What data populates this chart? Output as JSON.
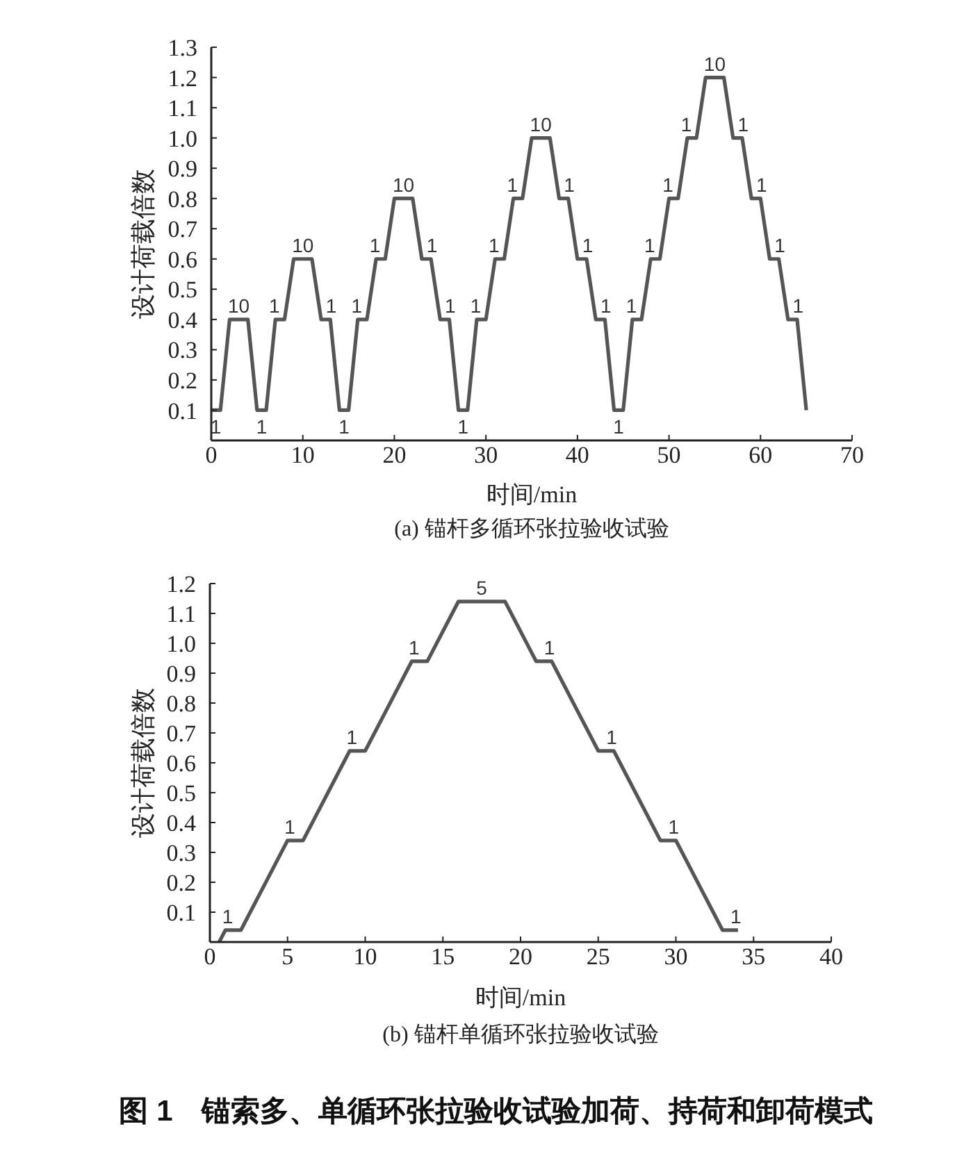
{
  "chart_data": [
    {
      "type": "line",
      "title": "(a) 锚杆多循环张拉验收试验",
      "xlabel": "时间/min",
      "ylabel": "设计荷载倍数",
      "color": "#555555",
      "marker": "none",
      "line_style": "solid",
      "x": [
        0,
        1,
        2,
        4,
        5,
        6,
        7,
        8,
        9,
        11,
        12,
        13,
        14,
        15,
        16,
        17,
        18,
        19,
        20,
        22,
        23,
        24,
        25,
        26,
        27,
        28,
        29,
        30,
        31,
        32,
        33,
        34,
        35,
        37,
        38,
        39,
        40,
        41,
        42,
        43,
        44,
        45,
        46,
        47,
        48,
        49,
        50,
        51,
        52,
        53,
        54,
        56,
        57,
        58,
        59,
        60,
        61,
        62,
        63,
        64,
        65
      ],
      "values": [
        0.1,
        0.1,
        0.4,
        0.4,
        0.1,
        0.1,
        0.4,
        0.4,
        0.6,
        0.6,
        0.4,
        0.4,
        0.1,
        0.1,
        0.4,
        0.4,
        0.6,
        0.6,
        0.8,
        0.8,
        0.6,
        0.6,
        0.4,
        0.4,
        0.1,
        0.1,
        0.4,
        0.4,
        0.6,
        0.6,
        0.8,
        0.8,
        1.0,
        1.0,
        0.8,
        0.8,
        0.6,
        0.6,
        0.4,
        0.4,
        0.1,
        0.1,
        0.4,
        0.4,
        0.6,
        0.6,
        0.8,
        0.8,
        1.0,
        1.0,
        1.2,
        1.2,
        1.0,
        1.0,
        0.8,
        0.8,
        0.6,
        0.6,
        0.4,
        0.4,
        0.1
      ],
      "xlim": [
        0,
        70
      ],
      "xticks": [
        0,
        10,
        20,
        30,
        40,
        50,
        60,
        70
      ],
      "ylim": [
        0,
        1.3
      ],
      "yticks": [
        0.1,
        0.2,
        0.3,
        0.4,
        0.5,
        0.6,
        0.7,
        0.8,
        0.9,
        {
          "value": 1,
          "label": "1.0"
        },
        1.1,
        1.2,
        1.3
      ],
      "annotations": [
        {
          "text": "1",
          "x": 0.5,
          "y": 0.1
        },
        {
          "text": "10",
          "x": 3,
          "y": 0.4
        },
        {
          "text": "1",
          "x": 5.5,
          "y": 0.1
        },
        {
          "text": "1",
          "x": 7.5,
          "y": 0.4
        },
        {
          "text": "10",
          "x": 10,
          "y": 0.6
        },
        {
          "text": "1",
          "x": 12.5,
          "y": 0.4
        },
        {
          "text": "1",
          "x": 14.5,
          "y": 0.1
        },
        {
          "text": "1",
          "x": 16.5,
          "y": 0.4
        },
        {
          "text": "1",
          "x": 18.5,
          "y": 0.6
        },
        {
          "text": "10",
          "x": 21,
          "y": 0.8
        },
        {
          "text": "1",
          "x": 23.5,
          "y": 0.6
        },
        {
          "text": "1",
          "x": 25.5,
          "y": 0.4
        },
        {
          "text": "1",
          "x": 27.5,
          "y": 0.1
        },
        {
          "text": "1",
          "x": 29.5,
          "y": 0.4
        },
        {
          "text": "1",
          "x": 31.5,
          "y": 0.6
        },
        {
          "text": "1",
          "x": 33.5,
          "y": 0.8
        },
        {
          "text": "10",
          "x": 36,
          "y": 1.0
        },
        {
          "text": "1",
          "x": 38.5,
          "y": 0.8
        },
        {
          "text": "1",
          "x": 40.5,
          "y": 0.6
        },
        {
          "text": "1",
          "x": 42.5,
          "y": 0.4
        },
        {
          "text": "1",
          "x": 44.5,
          "y": 0.1
        },
        {
          "text": "1",
          "x": 46.5,
          "y": 0.4
        },
        {
          "text": "1",
          "x": 48.5,
          "y": 0.6
        },
        {
          "text": "1",
          "x": 50.5,
          "y": 0.8
        },
        {
          "text": "1",
          "x": 52.5,
          "y": 1.0
        },
        {
          "text": "10",
          "x": 55,
          "y": 1.2
        },
        {
          "text": "1",
          "x": 57.5,
          "y": 1.0
        },
        {
          "text": "1",
          "x": 59.5,
          "y": 0.8
        },
        {
          "text": "1",
          "x": 61.5,
          "y": 0.6
        },
        {
          "text": "1",
          "x": 63.5,
          "y": 0.4
        }
      ]
    },
    {
      "type": "line",
      "title": "(b) 锚杆单循环张拉验收试验",
      "xlabel": "时间/min",
      "ylabel": "设计荷载倍数",
      "color": "#555555",
      "marker": "none",
      "line_style": "solid",
      "x": [
        0.6,
        1,
        2,
        5,
        6,
        9,
        10,
        13,
        14,
        16,
        19,
        21,
        22,
        25,
        26,
        29,
        30,
        33,
        34
      ],
      "values": [
        0,
        0.04,
        0.04,
        0.34,
        0.34,
        0.64,
        0.64,
        0.94,
        0.94,
        1.14,
        1.14,
        0.94,
        0.94,
        0.64,
        0.64,
        0.34,
        0.34,
        0.04,
        0.04
      ],
      "xlim": [
        0,
        40
      ],
      "xticks": [
        0,
        5,
        10,
        15,
        20,
        25,
        30,
        35,
        40
      ],
      "ylim": [
        0,
        1.2
      ],
      "yticks": [
        0.1,
        0.2,
        0.3,
        0.4,
        0.5,
        0.6,
        0.7,
        0.8,
        0.9,
        {
          "value": 1,
          "label": "1.0"
        },
        1.1,
        1.2
      ],
      "annotations": [
        {
          "text": "1",
          "x": 1.5,
          "y": 0.04
        },
        {
          "text": "1",
          "x": 5.5,
          "y": 0.34
        },
        {
          "text": "1",
          "x": 9.5,
          "y": 0.64
        },
        {
          "text": "1",
          "x": 13.5,
          "y": 0.94
        },
        {
          "text": "5",
          "x": 17.5,
          "y": 1.14
        },
        {
          "text": "1",
          "x": 21.5,
          "y": 0.94
        },
        {
          "text": "1",
          "x": 25.5,
          "y": 0.64
        },
        {
          "text": "1",
          "x": 29.5,
          "y": 0.34
        },
        {
          "text": "1",
          "x": 33.5,
          "y": 0.04
        },
        "图 1　锚索多、单循环张拉验收试验加荷、持荷和卸荷模式"
      ]
    }
  ]
}
